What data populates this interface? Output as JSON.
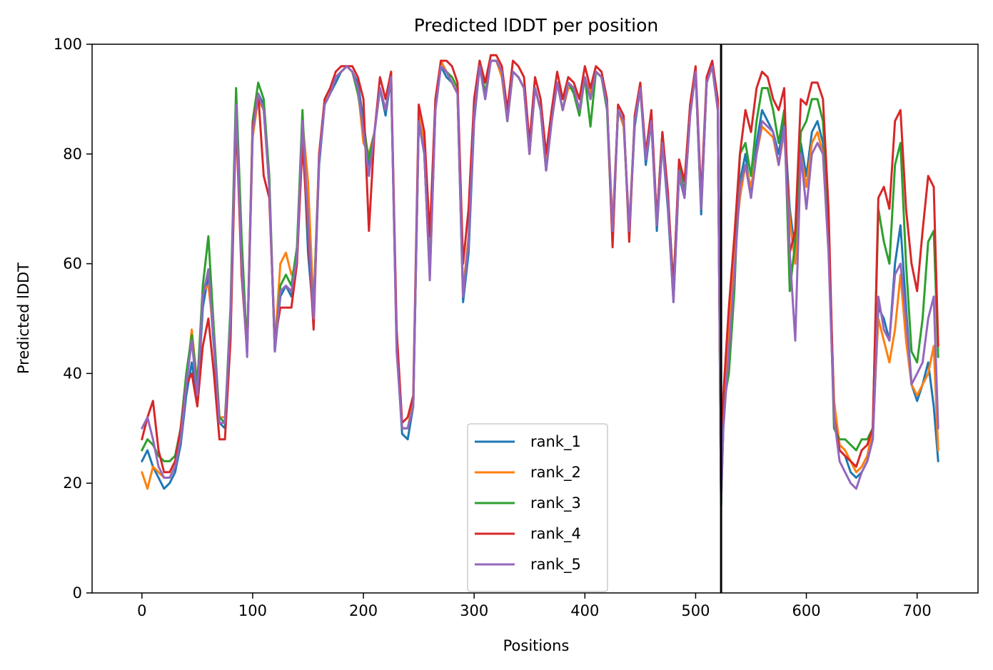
{
  "chart_data": {
    "type": "line",
    "title": "Predicted lDDT per position",
    "xlabel": "Positions",
    "ylabel": "Predicted lDDT",
    "xlim": [
      -45,
      755
    ],
    "ylim": [
      0,
      100
    ],
    "xticks": [
      0,
      100,
      200,
      300,
      400,
      500,
      600,
      700
    ],
    "yticks": [
      0,
      20,
      40,
      60,
      80,
      100
    ],
    "grid": false,
    "legend_position": "lower-center",
    "vline": 523,
    "vline_color": "#000000",
    "x": [
      0,
      5,
      10,
      15,
      20,
      25,
      30,
      35,
      40,
      45,
      50,
      55,
      60,
      65,
      70,
      75,
      80,
      85,
      90,
      95,
      100,
      105,
      110,
      115,
      120,
      125,
      130,
      135,
      140,
      145,
      150,
      155,
      160,
      165,
      170,
      175,
      180,
      185,
      190,
      195,
      200,
      205,
      210,
      215,
      220,
      225,
      230,
      235,
      240,
      245,
      250,
      255,
      260,
      265,
      270,
      275,
      280,
      285,
      290,
      295,
      300,
      305,
      310,
      315,
      320,
      325,
      330,
      335,
      340,
      345,
      350,
      355,
      360,
      365,
      370,
      375,
      380,
      385,
      390,
      395,
      400,
      405,
      410,
      415,
      420,
      425,
      430,
      435,
      440,
      445,
      450,
      455,
      460,
      465,
      470,
      475,
      480,
      485,
      490,
      495,
      500,
      505,
      510,
      515,
      520,
      523,
      525,
      530,
      535,
      540,
      545,
      550,
      555,
      560,
      565,
      570,
      575,
      580,
      585,
      590,
      595,
      600,
      605,
      610,
      615,
      620,
      625,
      630,
      635,
      640,
      645,
      650,
      655,
      660,
      665,
      670,
      675,
      680,
      685,
      690,
      695,
      700,
      705,
      710,
      715,
      719
    ],
    "series": [
      {
        "name": "rank_1",
        "color": "#1f77b4",
        "values": [
          24,
          26,
          23,
          21,
          19,
          20,
          22,
          27,
          36,
          42,
          35,
          52,
          58,
          45,
          31,
          30,
          48,
          88,
          62,
          44,
          84,
          91,
          89,
          74,
          44,
          54,
          56,
          54,
          62,
          86,
          62,
          50,
          78,
          89,
          91,
          93,
          95,
          96,
          95,
          93,
          86,
          78,
          84,
          92,
          87,
          94,
          45,
          29,
          28,
          34,
          86,
          80,
          58,
          88,
          96,
          94,
          93,
          91,
          53,
          62,
          86,
          96,
          90,
          97,
          97,
          95,
          86,
          95,
          94,
          92,
          80,
          92,
          88,
          77,
          86,
          93,
          88,
          93,
          92,
          88,
          94,
          90,
          95,
          94,
          89,
          66,
          88,
          86,
          66,
          85,
          92,
          78,
          86,
          66,
          82,
          70,
          53,
          76,
          72,
          87,
          95,
          69,
          93,
          96,
          88,
          16,
          30,
          45,
          60,
          75,
          80,
          72,
          82,
          88,
          86,
          84,
          80,
          86,
          70,
          62,
          82,
          76,
          84,
          86,
          82,
          65,
          35,
          26,
          25,
          22,
          21,
          22,
          24,
          28,
          52,
          50,
          46,
          60,
          67,
          52,
          38,
          35,
          38,
          42,
          34,
          24
        ]
      },
      {
        "name": "rank_2",
        "color": "#ff7f0e",
        "values": [
          22,
          19,
          23,
          22,
          21,
          21,
          23,
          28,
          38,
          48,
          38,
          55,
          56,
          47,
          32,
          32,
          48,
          87,
          62,
          44,
          83,
          90,
          88,
          74,
          45,
          60,
          62,
          58,
          60,
          86,
          75,
          52,
          80,
          89,
          91,
          94,
          95,
          96,
          95,
          92,
          82,
          80,
          84,
          92,
          88,
          95,
          45,
          30,
          30,
          35,
          87,
          82,
          60,
          88,
          97,
          95,
          93,
          91,
          55,
          65,
          87,
          96,
          91,
          97,
          97,
          94,
          86,
          95,
          94,
          92,
          80,
          92,
          88,
          78,
          86,
          93,
          88,
          92,
          92,
          88,
          94,
          91,
          95,
          94,
          89,
          67,
          88,
          85,
          67,
          86,
          92,
          80,
          86,
          67,
          82,
          72,
          55,
          76,
          73,
          87,
          95,
          70,
          93,
          96,
          88,
          17,
          32,
          48,
          62,
          72,
          78,
          74,
          80,
          85,
          84,
          83,
          78,
          84,
          68,
          60,
          80,
          74,
          82,
          84,
          80,
          64,
          35,
          27,
          26,
          24,
          22,
          23,
          25,
          30,
          50,
          46,
          42,
          48,
          58,
          46,
          38,
          36,
          38,
          40,
          45,
          26
        ]
      },
      {
        "name": "rank_3",
        "color": "#2ca02c",
        "values": [
          26,
          28,
          27,
          25,
          24,
          24,
          25,
          30,
          40,
          47,
          38,
          56,
          65,
          48,
          32,
          31,
          52,
          92,
          65,
          44,
          86,
          93,
          90,
          76,
          44,
          56,
          58,
          56,
          63,
          88,
          65,
          52,
          79,
          90,
          92,
          94,
          95,
          96,
          95,
          91,
          85,
          79,
          84,
          92,
          88,
          94,
          46,
          30,
          30,
          34,
          86,
          80,
          58,
          89,
          96,
          95,
          94,
          92,
          54,
          64,
          88,
          97,
          91,
          97,
          97,
          95,
          86,
          95,
          94,
          92,
          81,
          92,
          88,
          77,
          86,
          93,
          88,
          93,
          91,
          87,
          94,
          85,
          95,
          94,
          88,
          64,
          88,
          86,
          65,
          86,
          92,
          79,
          86,
          68,
          84,
          72,
          56,
          78,
          73,
          88,
          95,
          70,
          93,
          96,
          88,
          16,
          34,
          40,
          55,
          80,
          82,
          76,
          86,
          92,
          92,
          88,
          82,
          88,
          55,
          64,
          84,
          86,
          90,
          90,
          86,
          66,
          30,
          28,
          28,
          27,
          26,
          28,
          28,
          30,
          70,
          64,
          60,
          78,
          82,
          60,
          44,
          42,
          50,
          64,
          66,
          43
        ]
      },
      {
        "name": "rank_4",
        "color": "#d62728",
        "values": [
          28,
          32,
          35,
          26,
          22,
          22,
          24,
          30,
          38,
          40,
          34,
          45,
          50,
          40,
          28,
          28,
          46,
          87,
          58,
          44,
          85,
          91,
          76,
          72,
          46,
          52,
          52,
          52,
          60,
          82,
          66,
          48,
          80,
          90,
          92,
          95,
          96,
          96,
          96,
          94,
          90,
          66,
          84,
          94,
          90,
          95,
          48,
          31,
          32,
          36,
          89,
          84,
          65,
          90,
          97,
          97,
          96,
          93,
          60,
          70,
          90,
          97,
          93,
          98,
          98,
          96,
          88,
          97,
          96,
          94,
          82,
          94,
          90,
          80,
          88,
          95,
          90,
          94,
          93,
          90,
          96,
          92,
          96,
          95,
          90,
          63,
          89,
          87,
          64,
          87,
          93,
          80,
          88,
          68,
          84,
          73,
          55,
          79,
          75,
          89,
          96,
          72,
          94,
          97,
          90,
          18,
          36,
          52,
          65,
          80,
          88,
          84,
          92,
          95,
          94,
          90,
          88,
          92,
          62,
          66,
          90,
          89,
          93,
          93,
          90,
          70,
          32,
          26,
          25,
          24,
          23,
          26,
          27,
          30,
          72,
          74,
          70,
          86,
          88,
          70,
          60,
          55,
          66,
          76,
          74,
          45
        ]
      },
      {
        "name": "rank_5",
        "color": "#9467bd",
        "values": [
          30,
          32,
          28,
          23,
          21,
          21,
          23,
          28,
          38,
          46,
          36,
          54,
          59,
          46,
          31,
          31,
          50,
          89,
          60,
          43,
          84,
          91,
          88,
          74,
          44,
          55,
          56,
          55,
          61,
          86,
          68,
          50,
          79,
          89,
          91,
          94,
          95,
          96,
          95,
          92,
          84,
          76,
          84,
          92,
          88,
          94,
          44,
          30,
          30,
          34,
          86,
          80,
          57,
          88,
          96,
          95,
          93,
          91,
          54,
          64,
          87,
          96,
          90,
          97,
          97,
          95,
          86,
          95,
          94,
          92,
          80,
          92,
          88,
          77,
          86,
          93,
          88,
          93,
          92,
          88,
          94,
          90,
          95,
          94,
          89,
          66,
          88,
          86,
          66,
          86,
          92,
          79,
          86,
          67,
          82,
          71,
          53,
          77,
          72,
          87,
          95,
          70,
          93,
          96,
          88,
          17,
          30,
          44,
          58,
          74,
          78,
          72,
          80,
          86,
          85,
          84,
          78,
          85,
          62,
          46,
          80,
          70,
          80,
          82,
          80,
          62,
          32,
          24,
          22,
          20,
          19,
          22,
          24,
          28,
          54,
          48,
          46,
          58,
          60,
          50,
          38,
          40,
          42,
          50,
          54,
          30
        ]
      }
    ]
  }
}
